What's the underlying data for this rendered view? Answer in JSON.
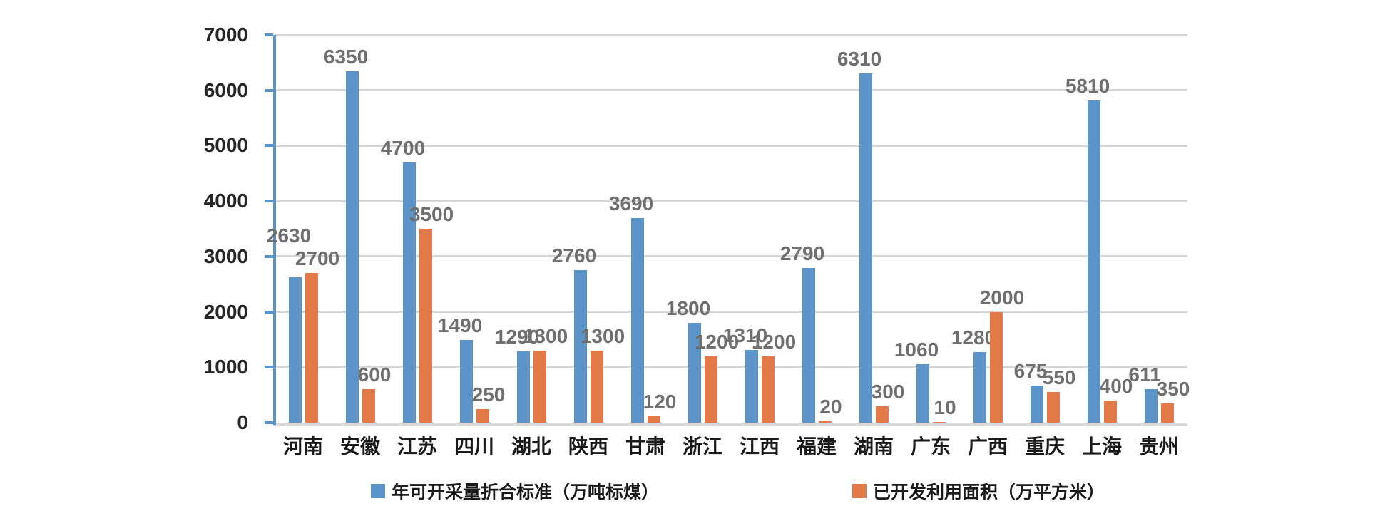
{
  "chart_data": {
    "type": "bar",
    "title": "",
    "categories": [
      "河南",
      "安徽",
      "江苏",
      "四川",
      "湖北",
      "陕西",
      "甘肃",
      "浙江",
      "江西",
      "福建",
      "湖南",
      "广东",
      "广西",
      "重庆",
      "上海",
      "贵州"
    ],
    "series": [
      {
        "name": "年可开采量折合标准（万吨标煤）",
        "color": "#5B94C8",
        "values": [
          2630,
          6350,
          4700,
          1490,
          1290,
          2760,
          3690,
          1800,
          1310,
          2790,
          6310,
          1060,
          1280,
          675,
          5810,
          611
        ]
      },
      {
        "name": "已开发利用面积（万平方米）",
        "color": "#E27A48",
        "values": [
          2700,
          600,
          3500,
          250,
          1300,
          1300,
          120,
          1200,
          1200,
          20,
          300,
          10,
          2000,
          550,
          400,
          350
        ]
      }
    ],
    "y_axis": {
      "min": 0,
      "max": 7000,
      "step": 1000,
      "tick_labels": [
        "0",
        "1000",
        "2000",
        "3000",
        "4000",
        "5000",
        "6000",
        "7000"
      ]
    },
    "xlabel": "",
    "ylabel": "",
    "grid": true,
    "data_labels": true,
    "legend_position": "bottom",
    "label_overrides": [
      {
        "series": 0,
        "category": 0,
        "dy": -38
      }
    ],
    "colors": {
      "gridline": "#D6D6D6",
      "baseline": "#D9D9D9",
      "axis_line": "#5B94C8",
      "tick_label": "#262626",
      "category_label": "#1A1A1A",
      "data_label": "#6F6F6F",
      "background": "#FFFFFF"
    }
  }
}
